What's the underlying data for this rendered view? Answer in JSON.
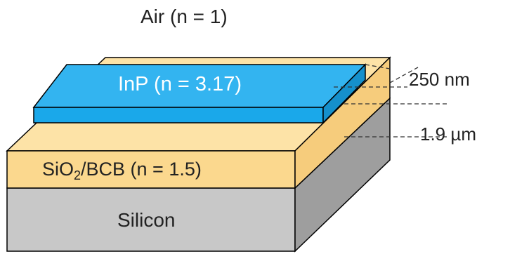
{
  "labels": {
    "air": "Air (n = 1)",
    "inp": "InP (n = 3.17)",
    "oxide_main": "SiO",
    "oxide_sub": "2",
    "oxide_rest": "/BCB (n = 1.5)",
    "silicon": "Silicon"
  },
  "dimensions": {
    "inp_thickness": "250 nm",
    "oxide_thickness": "1.9 µm"
  },
  "colors": {
    "inp_top": "#33b4f0",
    "inp_front": "#1aa8ea",
    "inp_side": "#1590cc",
    "oxide_top": "#fde3a7",
    "oxide_front": "#fbd88e",
    "oxide_side": "#f6cc7c",
    "silicon_front": "#c8c8c8",
    "silicon_side": "#9e9e9e",
    "outline": "#000000"
  }
}
